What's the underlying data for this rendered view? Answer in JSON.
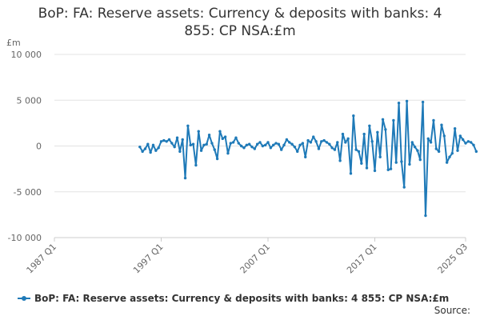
{
  "chart_data": {
    "type": "line",
    "title_line1": "BoP: FA: Reserve assets: Currency & deposits with banks: 4",
    "title_line2": "855: CP NSA:£m",
    "unit_label": "£m",
    "source_label": "Source:",
    "ylim": [
      -10000,
      10000
    ],
    "y_ticks": [
      {
        "value": 10000,
        "label": "10 000"
      },
      {
        "value": 5000,
        "label": "5 000"
      },
      {
        "value": 0,
        "label": "0"
      },
      {
        "value": -5000,
        "label": "-5 000"
      },
      {
        "value": -10000,
        "label": "-10 000"
      }
    ],
    "x_range": [
      "1987 Q1",
      "2025 Q3"
    ],
    "x_ticks": [
      "1987 Q1",
      "1997 Q1",
      "2007 Q1",
      "2017 Q1",
      "2025 Q3"
    ],
    "grid": "horizontal",
    "legend_position": "bottom",
    "series": [
      {
        "name": "BoP: FA: Reserve assets: Currency & deposits with banks: 4 855: CP NSA:£m",
        "color": "#1f7ab8",
        "start": "1995 Q1",
        "values": [
          -100,
          -600,
          -300,
          200,
          -700,
          100,
          -500,
          -200,
          500,
          600,
          500,
          700,
          300,
          -100,
          900,
          -600,
          700,
          -3500,
          2200,
          100,
          200,
          -2100,
          1600,
          -500,
          100,
          200,
          1200,
          300,
          -400,
          -1400,
          1600,
          800,
          1000,
          -800,
          300,
          400,
          900,
          300,
          0,
          -200,
          100,
          200,
          -100,
          -300,
          200,
          400,
          0,
          100,
          400,
          -200,
          100,
          300,
          200,
          -400,
          100,
          700,
          400,
          200,
          -100,
          -600,
          100,
          300,
          -1200,
          600,
          400,
          1000,
          500,
          -300,
          500,
          600,
          400,
          200,
          -200,
          -400,
          400,
          -1600,
          1300,
          400,
          800,
          -3000,
          3300,
          -400,
          -600,
          -1900,
          1300,
          -2400,
          2200,
          500,
          -2700,
          1500,
          -1200,
          2900,
          1800,
          -2600,
          -2500,
          2800,
          -1800,
          4700,
          -1700,
          -4500,
          4900,
          -2000,
          400,
          -100,
          -500,
          -1500,
          4800,
          -7600,
          800,
          400,
          2800,
          -300,
          -600,
          2300,
          1100,
          -1800,
          -1200,
          -800,
          1900,
          -500,
          1100,
          700,
          300,
          500,
          400,
          100,
          -600
        ]
      }
    ]
  }
}
